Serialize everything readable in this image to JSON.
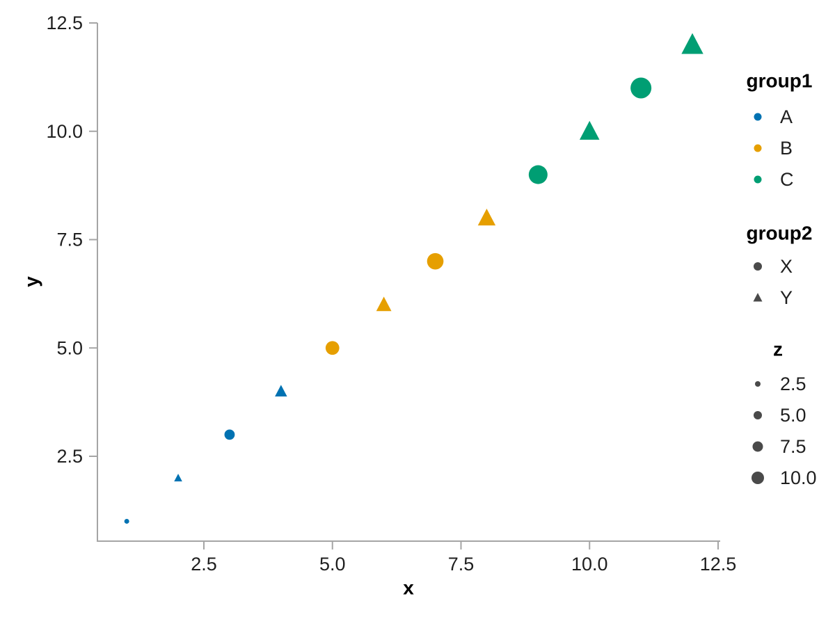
{
  "chart_data": {
    "type": "scatter",
    "title": "",
    "xlabel": "x",
    "ylabel": "y",
    "grid": false,
    "xlim": [
      0.45,
      12.55
    ],
    "ylim": [
      0.45,
      12.55
    ],
    "x_ticks": [
      2.5,
      5.0,
      7.5,
      10.0,
      12.5
    ],
    "x_tick_labels": [
      "2.5",
      "5.0",
      "7.5",
      "10.0",
      "12.5"
    ],
    "y_ticks": [
      2.5,
      5.0,
      7.5,
      10.0,
      12.5
    ],
    "y_tick_labels": [
      "2.5",
      "5.0",
      "7.5",
      "10.0",
      "12.5"
    ],
    "size_scale": {
      "label": "z",
      "z_domain": [
        1,
        12
      ],
      "marker_radius_px": [
        3.5,
        15.7
      ]
    },
    "points": [
      {
        "x": 1,
        "y": 1,
        "z": 1,
        "group1": "A",
        "group2": "X"
      },
      {
        "x": 2,
        "y": 2,
        "z": 2,
        "group1": "A",
        "group2": "Y"
      },
      {
        "x": 3,
        "y": 3,
        "z": 3,
        "group1": "A",
        "group2": "X"
      },
      {
        "x": 4,
        "y": 4,
        "z": 4,
        "group1": "A",
        "group2": "Y"
      },
      {
        "x": 5,
        "y": 5,
        "z": 5,
        "group1": "B",
        "group2": "X"
      },
      {
        "x": 6,
        "y": 6,
        "z": 6,
        "group1": "B",
        "group2": "Y"
      },
      {
        "x": 7,
        "y": 7,
        "z": 7,
        "group1": "B",
        "group2": "X"
      },
      {
        "x": 8,
        "y": 8,
        "z": 8,
        "group1": "B",
        "group2": "Y"
      },
      {
        "x": 9,
        "y": 9,
        "z": 9,
        "group1": "C",
        "group2": "X"
      },
      {
        "x": 10,
        "y": 10,
        "z": 10,
        "group1": "C",
        "group2": "Y"
      },
      {
        "x": 11,
        "y": 11,
        "z": 11,
        "group1": "C",
        "group2": "X"
      },
      {
        "x": 12,
        "y": 12,
        "z": 12,
        "group1": "C",
        "group2": "Y"
      }
    ]
  },
  "legend": {
    "group1": {
      "title": "group1",
      "items": [
        {
          "label": "A",
          "color": "#0072B2",
          "shape": "circle"
        },
        {
          "label": "B",
          "color": "#E69F00",
          "shape": "circle"
        },
        {
          "label": "C",
          "color": "#009E73",
          "shape": "circle"
        }
      ]
    },
    "group2": {
      "title": "group2",
      "items": [
        {
          "label": "X",
          "shape": "circle"
        },
        {
          "label": "Y",
          "shape": "triangle"
        }
      ]
    },
    "z": {
      "title": "z",
      "items": [
        {
          "label": "2.5",
          "r": 4
        },
        {
          "label": "5.0",
          "r": 6
        },
        {
          "label": "7.5",
          "r": 7.5
        },
        {
          "label": "10.0",
          "r": 9
        }
      ]
    }
  },
  "colors": {
    "A": "#0072B2",
    "B": "#E69F00",
    "C": "#009E73",
    "legend_marker": "#4a4a4a",
    "axis_line": "#a5a5a5",
    "tick_text": "#1f1f1f"
  }
}
